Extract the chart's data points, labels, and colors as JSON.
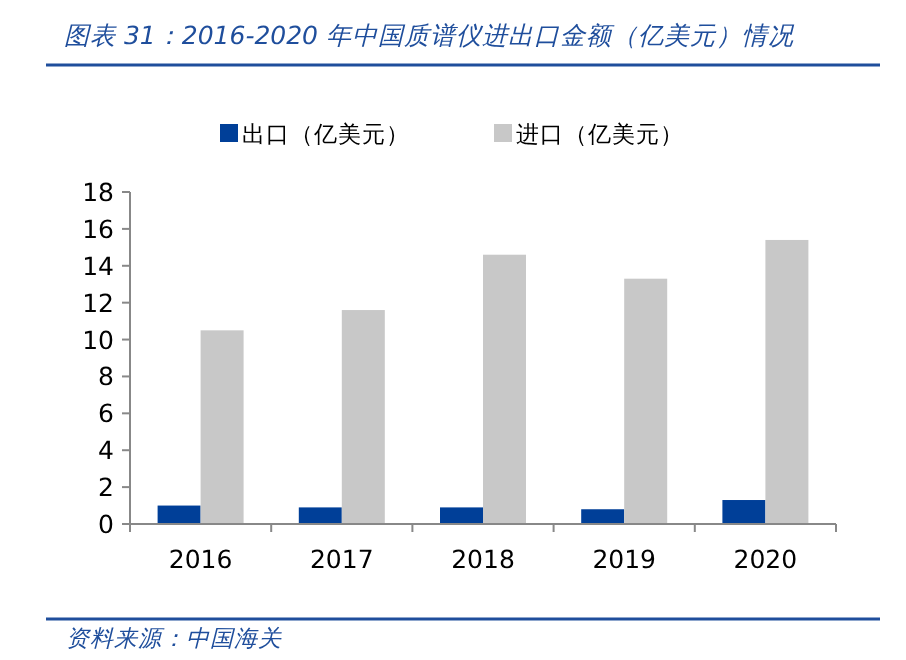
{
  "chart_data": {
    "type": "bar",
    "title": "图表 31：2016-2020 年中国质谱仪进出口金额（亿美元）情况",
    "categories": [
      "2016",
      "2017",
      "2018",
      "2019",
      "2020"
    ],
    "series": [
      {
        "name": "出口（亿美元）",
        "color": "#003f98",
        "values": [
          1.0,
          0.9,
          0.9,
          0.8,
          1.3
        ]
      },
      {
        "name": "进口（亿美元）",
        "color": "#c8c8c8",
        "values": [
          10.5,
          11.6,
          14.6,
          13.3,
          15.4
        ]
      }
    ],
    "ylim": [
      0,
      18
    ],
    "yticks": [
      0,
      2,
      4,
      6,
      8,
      10,
      12,
      14,
      16,
      18
    ],
    "legend": "top",
    "annotations": [
      "资料来源：中国海关"
    ]
  }
}
